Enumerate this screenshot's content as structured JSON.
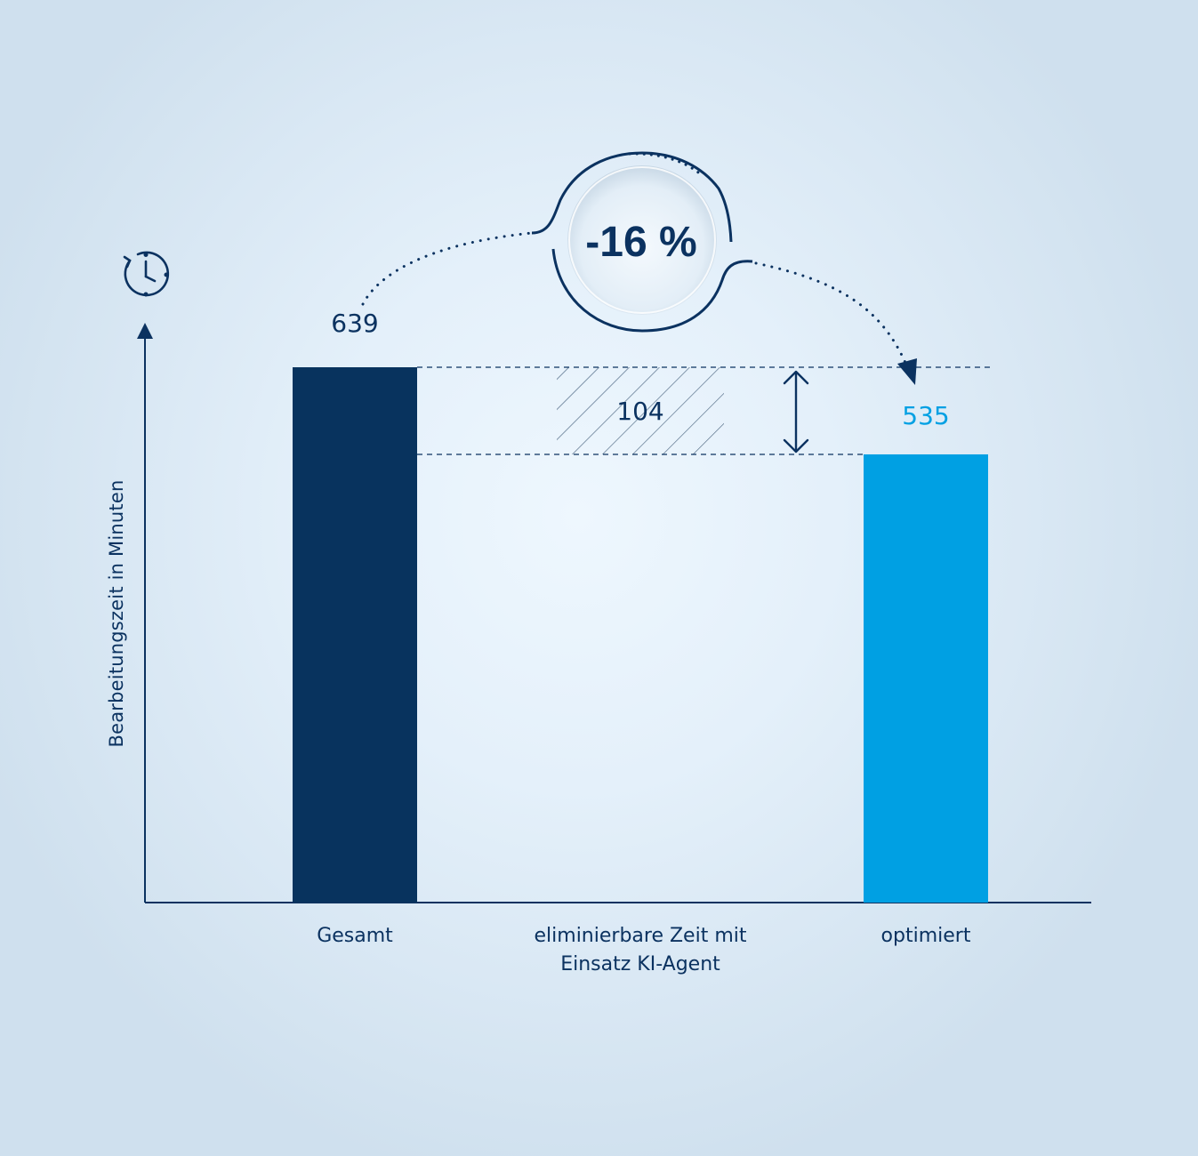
{
  "chart_data": {
    "type": "bar",
    "ylabel": "Bearbeitungszeit in Minuten",
    "categories": [
      "Gesamt",
      "eliminierbare Zeit mit Einsatz KI-Agent",
      "optimiert"
    ],
    "category_labels": [
      [
        "Gesamt"
      ],
      [
        "eliminierbare Zeit mit",
        "Einsatz KI-Agent"
      ],
      [
        "optimiert"
      ]
    ],
    "values": [
      639,
      104,
      535
    ],
    "value_labels": [
      "639",
      "104",
      "535"
    ],
    "reduction_label": "-16 %",
    "colors": {
      "total": "#08335e",
      "eliminated_hatch": "#4a6480",
      "optimized": "#00a0e3",
      "axis": "#0b3260"
    }
  },
  "icons": [
    "clock-icon",
    "double-arrow-icon"
  ]
}
